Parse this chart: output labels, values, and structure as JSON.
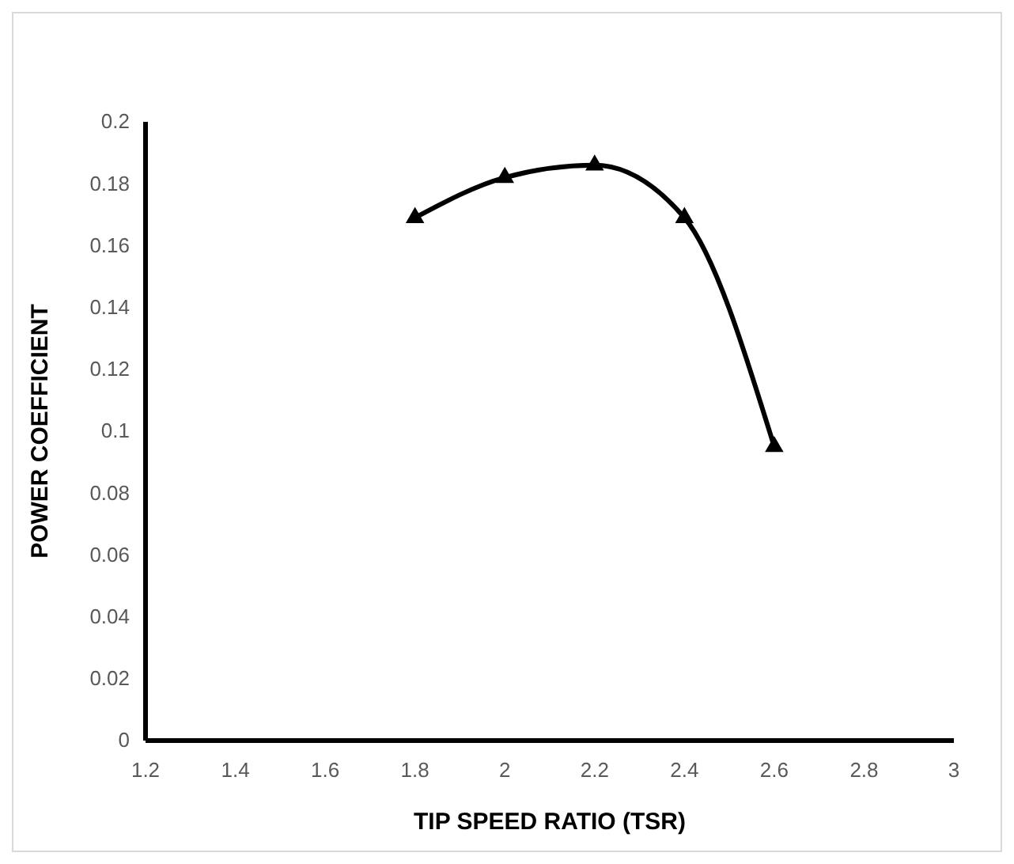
{
  "chart_data": {
    "type": "line",
    "xlabel": "TIP SPEED RATIO (TSR)",
    "ylabel": "POWER COEFFICIENT",
    "x": [
      1.8,
      2.0,
      2.2,
      2.4,
      2.6
    ],
    "series": [
      {
        "color": "#000000",
        "values": [
          0.169,
          0.182,
          0.186,
          0.169,
          0.095
        ]
      }
    ],
    "xlim": [
      1.2,
      3
    ],
    "xticks": [
      1.2,
      1.4,
      1.6,
      1.8,
      2,
      2.2,
      2.4,
      2.6,
      2.8,
      3
    ],
    "ylim": [
      0,
      0.2
    ],
    "yticks": [
      0,
      0.02,
      0.04,
      0.06,
      0.08,
      0.1,
      0.12,
      0.14,
      0.16,
      0.18,
      0.2
    ],
    "marker": "triangle",
    "line_style": "solid",
    "grid": false
  }
}
